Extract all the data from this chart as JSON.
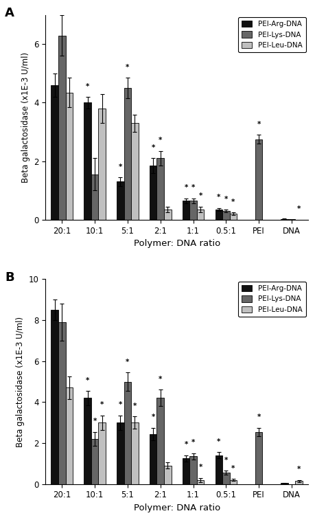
{
  "panel_A": {
    "title": "A",
    "ylim": [
      0,
      7
    ],
    "yticks": [
      0,
      2,
      4,
      6
    ],
    "ylabel": "Beta galactosidase (x1E-3 U/ml)",
    "xlabel": "Polymer: DNA ratio",
    "categories": [
      "20:1",
      "10:1",
      "5:1",
      "2:1",
      "1:1",
      "0.5:1",
      "PEI",
      "DNA"
    ],
    "bars": {
      "PEI-Arg-DNA": [
        4.6,
        4.0,
        1.3,
        1.85,
        0.65,
        0.35,
        0.0,
        0.03
      ],
      "PEI-Lys-DNA": [
        6.3,
        1.55,
        4.5,
        2.1,
        0.65,
        0.3,
        2.75,
        0.02
      ],
      "PEI-Leu-DNA": [
        4.35,
        3.8,
        3.3,
        0.35,
        0.35,
        0.2,
        0.0,
        0.0
      ]
    },
    "errors": {
      "PEI-Arg-DNA": [
        0.4,
        0.2,
        0.15,
        0.25,
        0.08,
        0.05,
        0.0,
        0.01
      ],
      "PEI-Lys-DNA": [
        0.7,
        0.55,
        0.35,
        0.25,
        0.08,
        0.05,
        0.15,
        0.0
      ],
      "PEI-Leu-DNA": [
        0.5,
        0.5,
        0.3,
        0.1,
        0.1,
        0.05,
        0.0,
        0.0
      ]
    },
    "stars": {
      "PEI-Arg-DNA": [
        false,
        true,
        true,
        true,
        true,
        true,
        false,
        false
      ],
      "PEI-Lys-DNA": [
        false,
        false,
        true,
        true,
        true,
        true,
        true,
        false
      ],
      "PEI-Leu-DNA": [
        false,
        false,
        false,
        false,
        true,
        true,
        false,
        true
      ]
    }
  },
  "panel_B": {
    "title": "B",
    "ylim": [
      0,
      10
    ],
    "yticks": [
      0,
      2,
      4,
      6,
      8,
      10
    ],
    "ylabel": "Beta galactosidase (x1E-3 U/ml)",
    "xlabel": "Polymer: DNA ratio",
    "categories": [
      "20:1",
      "10:1",
      "5:1",
      "2:1",
      "1:1",
      "0.5:1",
      "PEI",
      "DNA"
    ],
    "bars": {
      "PEI-Arg-DNA": [
        8.5,
        4.2,
        3.0,
        2.45,
        1.25,
        1.4,
        0.0,
        0.05
      ],
      "PEI-Lys-DNA": [
        7.9,
        2.2,
        5.0,
        4.2,
        1.35,
        0.55,
        2.55,
        0.0
      ],
      "PEI-Leu-DNA": [
        4.7,
        3.0,
        3.0,
        0.9,
        0.2,
        0.2,
        0.0,
        0.15
      ]
    },
    "errors": {
      "PEI-Arg-DNA": [
        0.5,
        0.35,
        0.35,
        0.3,
        0.15,
        0.15,
        0.0,
        0.02
      ],
      "PEI-Lys-DNA": [
        0.9,
        0.35,
        0.45,
        0.4,
        0.15,
        0.1,
        0.2,
        0.0
      ],
      "PEI-Leu-DNA": [
        0.55,
        0.35,
        0.3,
        0.15,
        0.1,
        0.05,
        0.0,
        0.05
      ]
    },
    "stars": {
      "PEI-Arg-DNA": [
        false,
        true,
        true,
        true,
        true,
        true,
        false,
        false
      ],
      "PEI-Lys-DNA": [
        false,
        true,
        true,
        true,
        true,
        true,
        true,
        false
      ],
      "PEI-Leu-DNA": [
        false,
        true,
        true,
        false,
        true,
        true,
        false,
        true
      ]
    }
  },
  "colors": {
    "PEI-Arg-DNA": "#111111",
    "PEI-Lys-DNA": "#666666",
    "PEI-Leu-DNA": "#c0c0c0"
  },
  "bar_width": 0.22,
  "legend_labels": [
    "PEI-Arg-DNA",
    "PEI-Lys-DNA",
    "PEI-Leu-DNA"
  ]
}
